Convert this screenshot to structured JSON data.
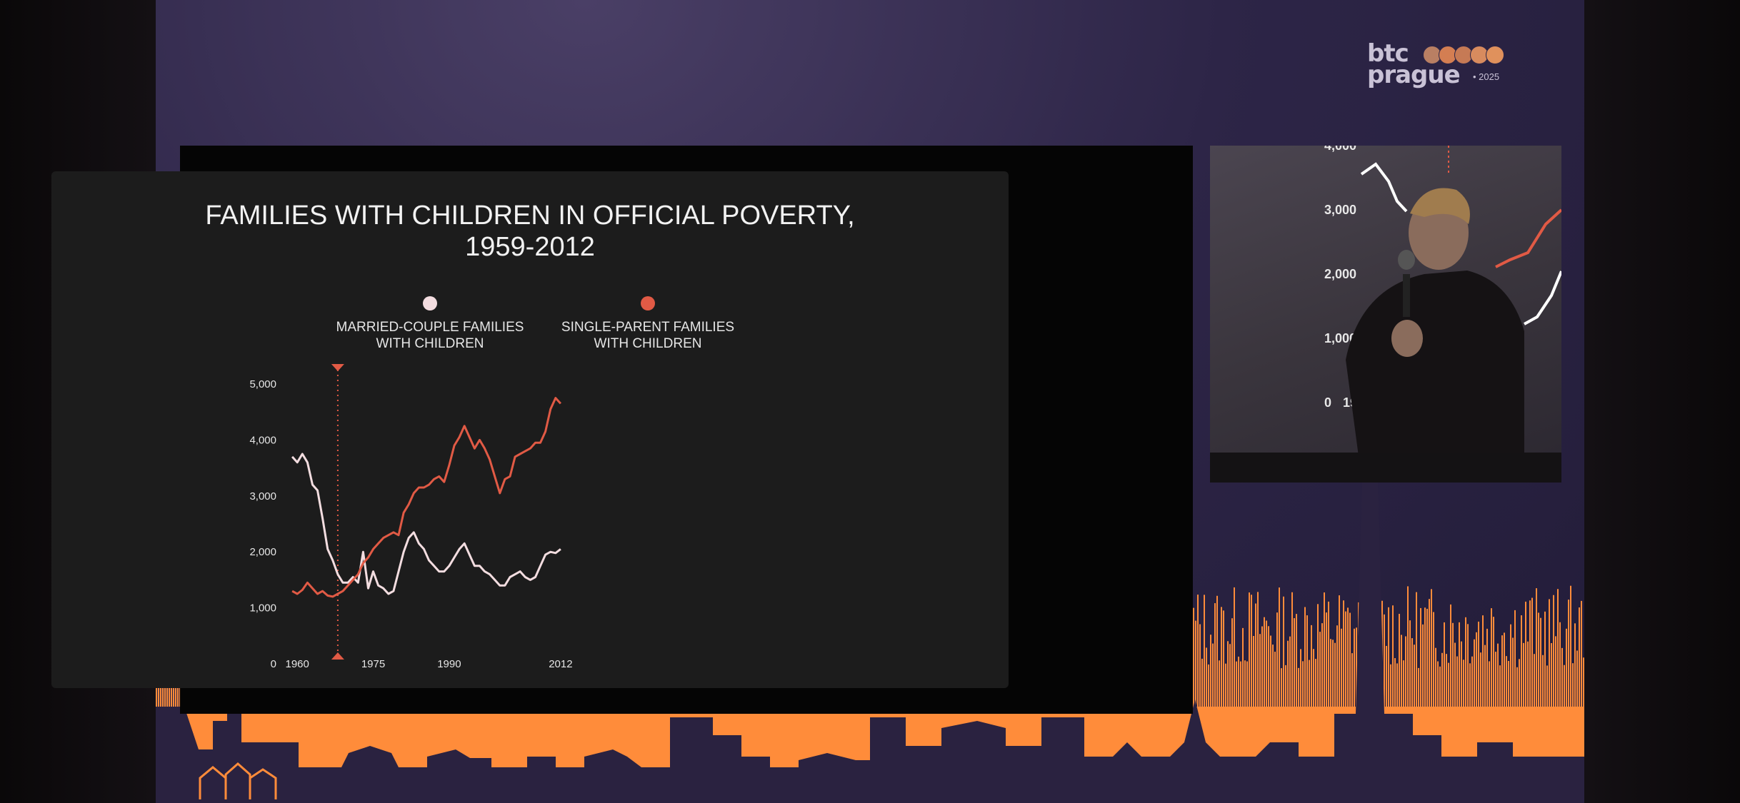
{
  "logo": {
    "word1": "btc",
    "word2": "prague",
    "year": "• 2025",
    "dot_colors": [
      "#b97f63",
      "#d47e52",
      "#c67a55",
      "#d88b5e",
      "#e0915c"
    ]
  },
  "colors": {
    "married": "#f3dde0",
    "single": "#e15a45",
    "marker": "#e15a45",
    "orange": "#ff8c3a"
  },
  "chart_data": {
    "type": "line",
    "title": "FAMILIES WITH CHILDREN IN OFFICIAL POVERTY, 1959-2012",
    "xlabel": "",
    "ylabel": "",
    "xlim": [
      1958,
      2013
    ],
    "ylim": [
      0,
      5000
    ],
    "x_ticks": [
      "1960",
      "1975",
      "1990",
      "2012"
    ],
    "y_ticks": [
      "0",
      "1,000",
      "2,000",
      "3,000",
      "4,000",
      "5,000"
    ],
    "marker_year": 1968,
    "legend": "top",
    "grid": false,
    "x": [
      1959,
      1960,
      1961,
      1962,
      1963,
      1964,
      1965,
      1966,
      1967,
      1968,
      1969,
      1970,
      1971,
      1972,
      1973,
      1974,
      1975,
      1976,
      1977,
      1978,
      1979,
      1980,
      1981,
      1982,
      1983,
      1984,
      1985,
      1986,
      1987,
      1988,
      1989,
      1990,
      1991,
      1992,
      1993,
      1994,
      1995,
      1996,
      1997,
      1998,
      1999,
      2000,
      2001,
      2002,
      2003,
      2004,
      2005,
      2006,
      2007,
      2008,
      2009,
      2010,
      2011,
      2012
    ],
    "series": [
      {
        "name": "MARRIED-COUPLE FAMILIES WITH CHILDREN",
        "color": "#f3dde0",
        "values": [
          3700,
          3600,
          3750,
          3600,
          3200,
          3100,
          2600,
          2050,
          1850,
          1600,
          1450,
          1450,
          1550,
          1450,
          2000,
          1350,
          1650,
          1400,
          1350,
          1250,
          1300,
          1650,
          2000,
          2250,
          2350,
          2150,
          2050,
          1850,
          1750,
          1650,
          1650,
          1750,
          1900,
          2050,
          2150,
          1950,
          1750,
          1750,
          1650,
          1600,
          1500,
          1400,
          1400,
          1550,
          1600,
          1650,
          1550,
          1500,
          1550,
          1750,
          1950,
          2000,
          1980,
          2050
        ]
      },
      {
        "name": "SINGLE-PARENT FAMILIES WITH CHILDREN",
        "color": "#e15a45",
        "values": [
          1300,
          1250,
          1320,
          1450,
          1350,
          1250,
          1300,
          1220,
          1200,
          1250,
          1300,
          1400,
          1500,
          1600,
          1800,
          1900,
          2050,
          2150,
          2250,
          2300,
          2350,
          2300,
          2700,
          2850,
          3050,
          3150,
          3150,
          3200,
          3300,
          3350,
          3250,
          3550,
          3900,
          4050,
          4250,
          4050,
          3850,
          4000,
          3850,
          3650,
          3350,
          3050,
          3300,
          3350,
          3700,
          3750,
          3800,
          3850,
          3950,
          3950,
          4150,
          4550,
          4750,
          4650
        ]
      }
    ]
  },
  "camera": {
    "y_ticks": [
      "4,000",
      "3,000",
      "2,000",
      "1,000",
      "0"
    ],
    "x_tick": "1960"
  }
}
